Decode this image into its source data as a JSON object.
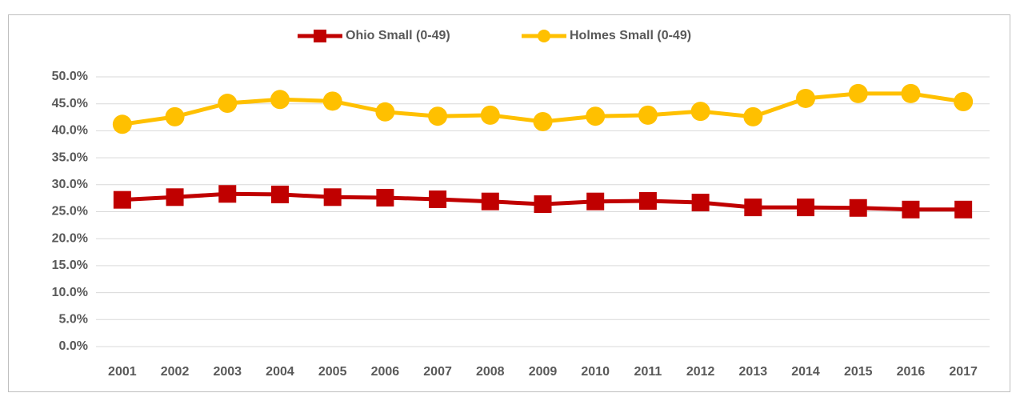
{
  "chart_data": {
    "type": "line",
    "categories": [
      "2001",
      "2002",
      "2003",
      "2004",
      "2005",
      "2006",
      "2007",
      "2008",
      "2009",
      "2010",
      "2011",
      "2012",
      "2013",
      "2014",
      "2015",
      "2016",
      "2017"
    ],
    "series": [
      {
        "name": "Ohio Small (0-49)",
        "color": "#c00000",
        "marker": "square",
        "values": [
          27.2,
          27.7,
          28.3,
          28.2,
          27.7,
          27.6,
          27.3,
          26.9,
          26.4,
          26.9,
          27.0,
          26.7,
          25.8,
          25.8,
          25.7,
          25.4,
          25.4
        ]
      },
      {
        "name": "Holmes  Small (0-49)",
        "color": "#ffc000",
        "marker": "circle",
        "values": [
          41.2,
          42.6,
          45.1,
          45.8,
          45.5,
          43.5,
          42.7,
          42.9,
          41.7,
          42.7,
          42.9,
          43.6,
          42.6,
          46.0,
          46.9,
          46.9,
          45.4
        ]
      }
    ],
    "ylim": [
      0,
      50
    ],
    "yticks": [
      {
        "value": 0,
        "label": "0.0%"
      },
      {
        "value": 5,
        "label": "5.0%"
      },
      {
        "value": 10,
        "label": "10.0%"
      },
      {
        "value": 15,
        "label": "15.0%"
      },
      {
        "value": 20,
        "label": "20.0%"
      },
      {
        "value": 25,
        "label": "25.0%"
      },
      {
        "value": 30,
        "label": "30.0%"
      },
      {
        "value": 35,
        "label": "35.0%"
      },
      {
        "value": 40,
        "label": "40.0%"
      },
      {
        "value": 45,
        "label": "45.0%"
      },
      {
        "value": 50,
        "label": "50.0%"
      }
    ],
    "grid": true,
    "legend": "top"
  }
}
